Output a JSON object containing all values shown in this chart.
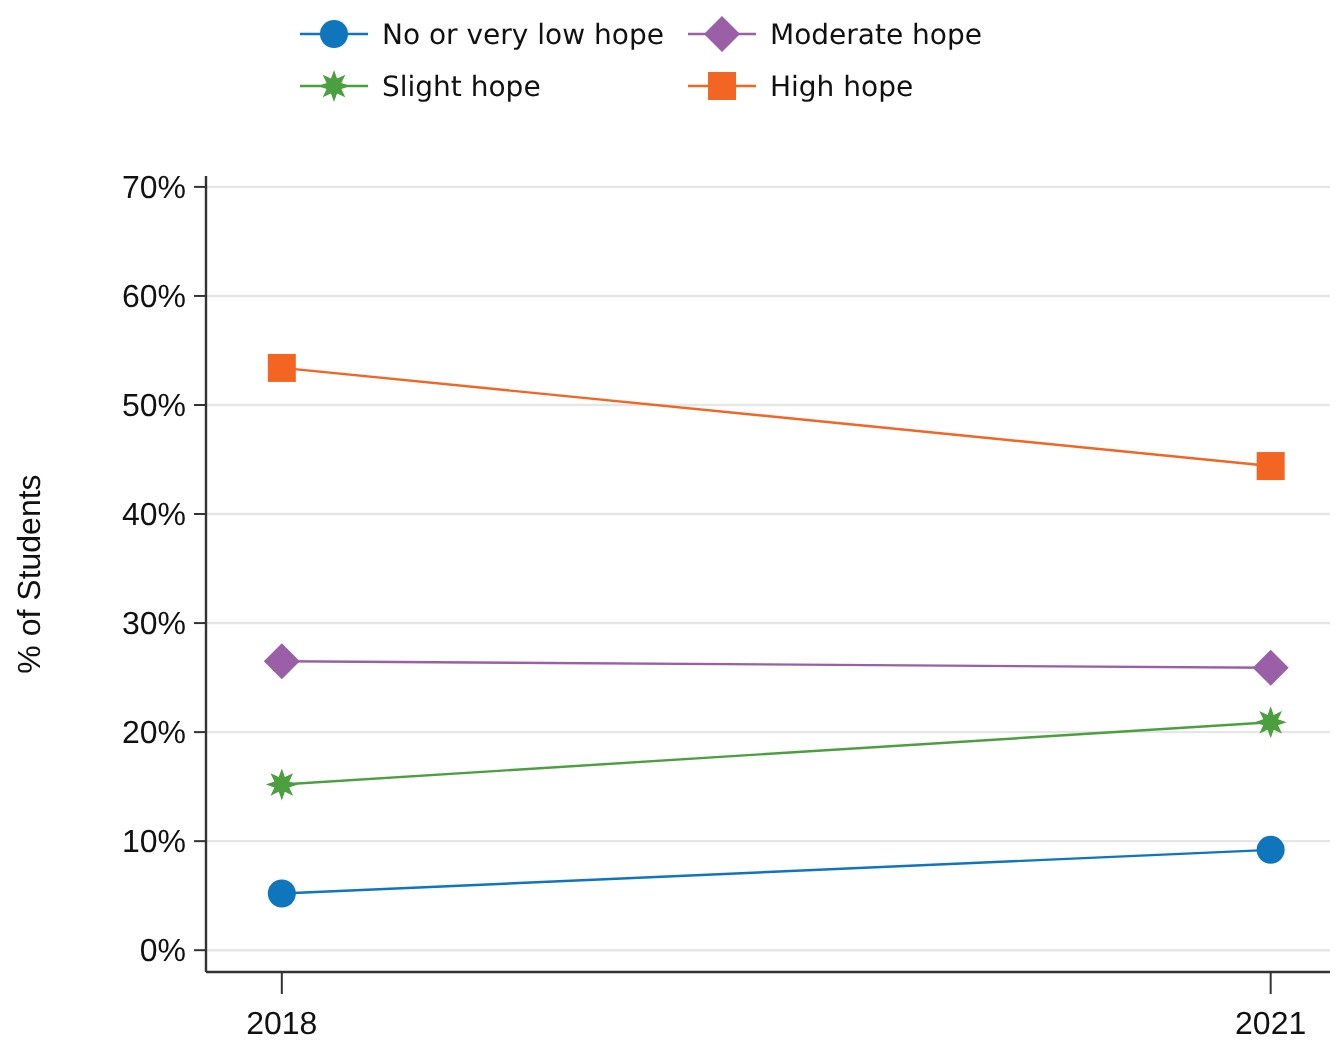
{
  "chart_data": {
    "type": "line",
    "ylabel": "% of Students",
    "x": [
      2018,
      2021
    ],
    "xlim": [
      2017.77,
      2021.18
    ],
    "xticks": [
      2018,
      2021
    ],
    "ylim": [
      -2,
      71
    ],
    "yticks": [
      {
        "value": 0,
        "label": "0%"
      },
      {
        "value": 10,
        "label": "10%"
      },
      {
        "value": 20,
        "label": "20%"
      },
      {
        "value": 30,
        "label": "30%"
      },
      {
        "value": 40,
        "label": "40%"
      },
      {
        "value": 50,
        "label": "50%"
      },
      {
        "value": 60,
        "label": "60%"
      },
      {
        "value": 70,
        "label": "70%"
      }
    ],
    "grid": "y",
    "legend": "top",
    "series": [
      {
        "name": "No or very low hope",
        "color": "#0f75bc",
        "marker": "circle",
        "values": [
          5.2,
          9.2
        ]
      },
      {
        "name": "Slight hope",
        "color": "#4c9f3f",
        "marker": "star",
        "values": [
          15.2,
          20.9
        ]
      },
      {
        "name": "Moderate hope",
        "color": "#9b5fa8",
        "marker": "diamond",
        "values": [
          26.5,
          25.9
        ]
      },
      {
        "name": "High hope",
        "color": "#f26522",
        "marker": "square",
        "values": [
          53.4,
          44.4
        ]
      }
    ]
  }
}
